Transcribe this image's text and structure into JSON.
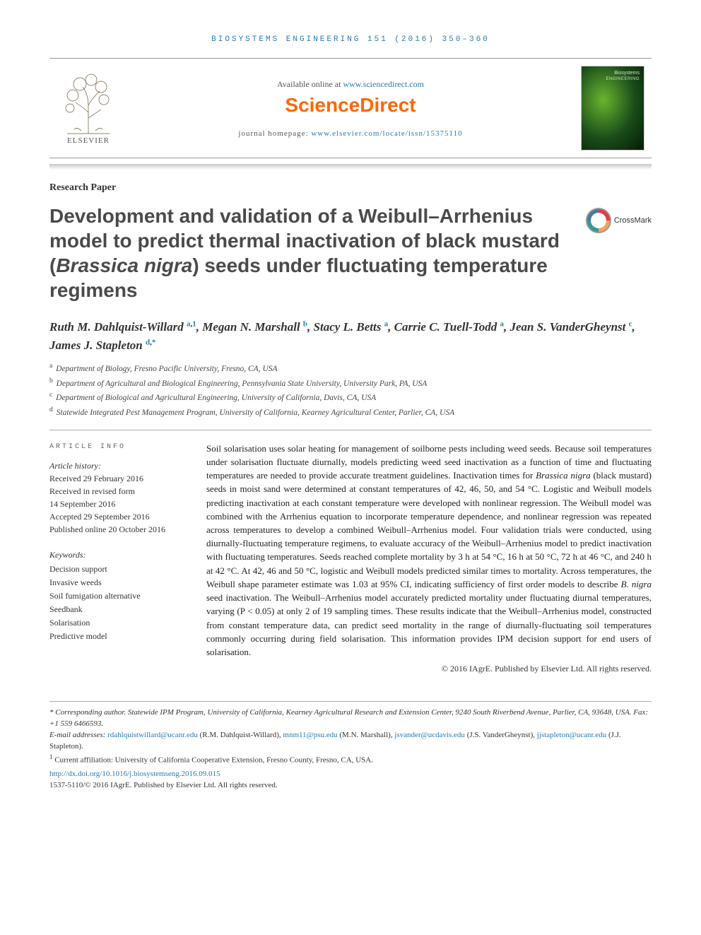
{
  "running_head": "BIOSYSTEMS ENGINEERING 151 (2016) 350–360",
  "header": {
    "available_prefix": "Available online at ",
    "available_link": "www.sciencedirect.com",
    "sd_logo_text": "ScienceDirect",
    "journal_home_prefix": "journal homepage: ",
    "journal_home_link": "www.elsevier.com/locate/issn/15375110",
    "elsevier_label": "ELSEVIER",
    "cover_journal": "Biosystems ENGINEERING"
  },
  "article_type": "Research Paper",
  "title_html": "Development and validation of a Weibull–Arrhenius model to predict thermal inactivation of black mustard (<em>Brassica nigra</em>) seeds under fluctuating temperature regimens",
  "crossmark_label": "CrossMark",
  "authors_html": "Ruth M. Dahlquist-Willard <sup><a>a</a>,<a>1</a></sup>, Megan N. Marshall <sup><a>b</a></sup>, Stacy L. Betts <sup><a>a</a></sup>, Carrie C. Tuell-Todd <sup><a>a</a></sup>, Jean S. VanderGheynst <sup><a>c</a></sup>, James J. Stapleton <sup><a>d</a>,<a>*</a></sup>",
  "affiliations": [
    {
      "marker": "a",
      "text": "Department of Biology, Fresno Pacific University, Fresno, CA, USA"
    },
    {
      "marker": "b",
      "text": "Department of Agricultural and Biological Engineering, Pennsylvania State University, University Park, PA, USA"
    },
    {
      "marker": "c",
      "text": "Department of Biological and Agricultural Engineering, University of California, Davis, CA, USA"
    },
    {
      "marker": "d",
      "text": "Statewide Integrated Pest Management Program, University of California, Kearney Agricultural Center, Parlier, CA, USA"
    }
  ],
  "article_info_head": "ARTICLE INFO",
  "history_label": "Article history:",
  "history": [
    "Received 29 February 2016",
    "Received in revised form",
    "14 September 2016",
    "Accepted 29 September 2016",
    "Published online 20 October 2016"
  ],
  "keywords_label": "Keywords:",
  "keywords": [
    "Decision support",
    "Invasive weeds",
    "Soil fumigation alternative",
    "Seedbank",
    "Solarisation",
    "Predictive model"
  ],
  "abstract_html": "Soil solarisation uses solar heating for management of soilborne pests including weed seeds. Because soil temperatures under solarisation fluctuate diurnally, models predicting weed seed inactivation as a function of time and fluctuating temperatures are needed to provide accurate treatment guidelines. Inactivation times for <em>Brassica nigra</em> (black mustard) seeds in moist sand were determined at constant temperatures of 42, 46, 50, and 54 °C. Logistic and Weibull models predicting inactivation at each constant temperature were developed with nonlinear regression. The Weibull model was combined with the Arrhenius equation to incorporate temperature dependence, and nonlinear regression was repeated across temperatures to develop a combined Weibull–Arrhenius model. Four validation trials were conducted, using diurnally-fluctuating temperature regimens, to evaluate accuracy of the Weibull–Arrhenius model to predict inactivation with fluctuating temperatures. Seeds reached complete mortality by 3 h at 54 °C, 16 h at 50 °C, 72 h at 46 °C, and 240 h at 42 °C. At 42, 46 and 50 °C, logistic and Weibull models predicted similar times to mortality. Across temperatures, the Weibull shape parameter estimate was 1.03 at 95% CI, indicating sufficiency of first order models to describe <em>B. nigra</em> seed inactivation. The Weibull–Arrhenius model accurately predicted mortality under fluctuating diurnal temperatures, varying (P &lt; 0.05) at only 2 of 19 sampling times. These results indicate that the Weibull–Arrhenius model, constructed from constant temperature data, can predict seed mortality in the range of diurnally-fluctuating soil temperatures commonly occurring during field solarisation. This information provides IPM decision support for end users of solarisation.",
  "copyright": "© 2016 IAgrE. Published by Elsevier Ltd. All rights reserved.",
  "footnotes": {
    "corresponding": "* Corresponding author. Statewide IPM Program, University of California, Kearney Agricultural Research and Extension Center, 9240 South Riverbend Avenue, Parlier, CA, 93648, USA. Fax: +1 559 6466593.",
    "emails_label": "E-mail addresses: ",
    "emails": [
      {
        "addr": "rdahlquistwillard@ucanr.edu",
        "who": "(R.M. Dahlquist-Willard)"
      },
      {
        "addr": "mnm11@psu.edu",
        "who": "(M.N. Marshall)"
      },
      {
        "addr": "jsvander@ucdavis.edu",
        "who": "(J.S. VanderGheynst)"
      },
      {
        "addr": "jjstapleton@ucanr.edu",
        "who": "(J.J. Stapleton)"
      }
    ],
    "current_affil": "Current affiliation: University of California Cooperative Extension, Fresno County, Fresno, CA, USA.",
    "doi_link": "http://dx.doi.org/10.1016/j.biosystemseng.2016.09.015",
    "issn_line": "1537-5110/© 2016 IAgrE. Published by Elsevier Ltd. All rights reserved."
  },
  "colors": {
    "link": "#2a7ab0",
    "brand_orange": "#ff6600",
    "text": "#333333",
    "rule": "#aaaaaa"
  }
}
